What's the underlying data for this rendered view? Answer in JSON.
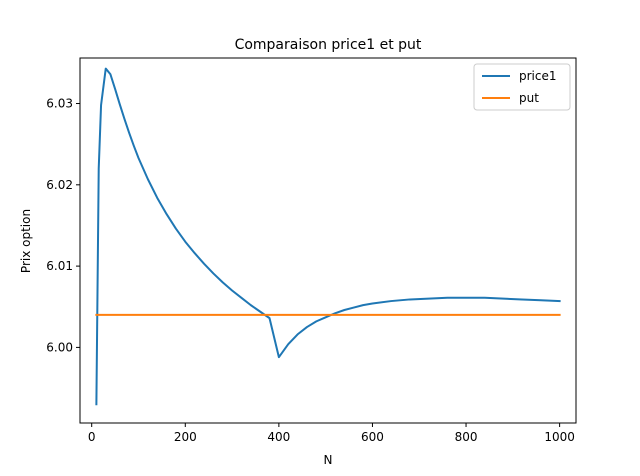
{
  "chart_data": {
    "type": "line",
    "title": "Comparaison price1 et put",
    "xlabel": "N",
    "ylabel": "Prix option",
    "xlim": [
      -25,
      1035
    ],
    "ylim": [
      5.9907,
      6.0356
    ],
    "xticks": [
      0,
      200,
      400,
      600,
      800,
      1000
    ],
    "yticks": [
      6.0,
      6.01,
      6.02,
      6.03
    ],
    "xtick_labels": [
      "0",
      "200",
      "400",
      "600",
      "800",
      "1000"
    ],
    "ytick_labels": [
      "6.00",
      "6.01",
      "6.02",
      "6.03"
    ],
    "grid": false,
    "legend_position": "top-right",
    "series": [
      {
        "name": "price1",
        "color": "#1f77b4",
        "x": [
          10,
          15,
          20,
          30,
          40,
          50,
          60,
          70,
          80,
          90,
          100,
          120,
          140,
          160,
          180,
          200,
          220,
          240,
          260,
          280,
          300,
          320,
          340,
          360,
          380,
          400,
          420,
          440,
          460,
          480,
          500,
          520,
          540,
          560,
          580,
          600,
          640,
          680,
          720,
          760,
          800,
          840,
          880,
          920,
          960,
          1000
        ],
        "y": [
          5.993,
          6.022,
          6.0298,
          6.0343,
          6.0336,
          6.0318,
          6.0299,
          6.0281,
          6.0264,
          6.0248,
          6.0233,
          6.0207,
          6.0184,
          6.0164,
          6.0146,
          6.013,
          6.0116,
          6.0103,
          6.0091,
          6.008,
          6.007,
          6.0061,
          6.0052,
          6.0044,
          6.0036,
          5.9988,
          6.0004,
          6.0016,
          6.0025,
          6.0032,
          6.0037,
          6.0042,
          6.0046,
          6.0049,
          6.0052,
          6.0054,
          6.0057,
          6.0059,
          6.006,
          6.0061,
          6.0061,
          6.0061,
          6.006,
          6.0059,
          6.0058,
          6.0057
        ]
      },
      {
        "name": "put",
        "color": "#ff7f0e",
        "x": [
          10,
          1000
        ],
        "y": [
          6.004,
          6.004
        ]
      }
    ]
  }
}
